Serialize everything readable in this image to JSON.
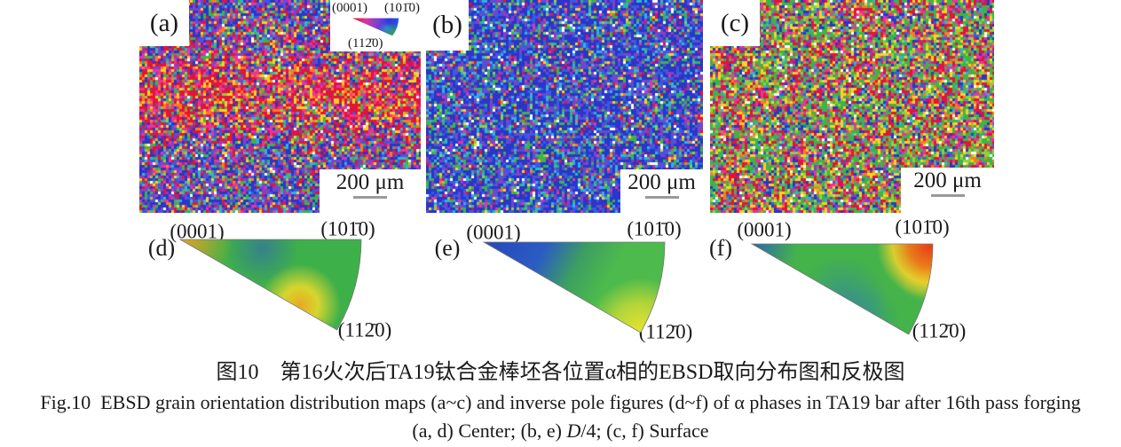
{
  "figure": {
    "maps": [
      {
        "id": "a",
        "label": "(a)",
        "scale_text": "200 μm"
      },
      {
        "id": "b",
        "label": "(b)",
        "scale_text": "200 μm"
      },
      {
        "id": "c",
        "label": "(c)",
        "scale_text": "200 μm"
      }
    ],
    "legend": {
      "pole_basal": "(0001)",
      "pole_prism1": "(101̄0)",
      "pole_prism2": "(112̄0)"
    },
    "ipfs": [
      {
        "id": "d",
        "label": "(d)",
        "corner_top_left": "(0001)",
        "corner_top_right": "(101̄0)",
        "corner_bottom": "(112̄0)"
      },
      {
        "id": "e",
        "label": "(e)",
        "corner_top_left": "(0001)",
        "corner_top_right": "(101̄0)",
        "corner_bottom": "(112̄0)"
      },
      {
        "id": "f",
        "label": "(f)",
        "corner_top_left": "(0001)",
        "corner_top_right": "(101̄0)",
        "corner_bottom": "(112̄0)"
      }
    ],
    "captions": {
      "zh": "图10　第16火次后TA19钛合金棒坯各位置α相的EBSD取向分布图和反极图",
      "en_line1": "Fig.10  EBSD grain orientation distribution maps (a~c) and inverse pole figures (d~f) of α phases in TA19 bar after 16th pass forging",
      "en_line2_pre": "(a, d) Center; (b, e) ",
      "en_line2_italic": "D",
      "en_line2_post": "/4; (c, f) Surface"
    },
    "ebsd_palettes": {
      "a": [
        {
          "c": "#e0143c",
          "w": 0.2,
          "g": "warm"
        },
        {
          "c": "#ff7a1e",
          "w": 0.06,
          "g": "warm"
        },
        {
          "c": "#ffd21e",
          "w": 0.07,
          "g": "warm"
        },
        {
          "c": "#e8359b",
          "w": 0.1,
          "g": "warm"
        },
        {
          "c": "#2936c8",
          "w": 0.15,
          "g": "cool"
        },
        {
          "c": "#8a3fc0",
          "w": 0.1,
          "g": "cool"
        },
        {
          "c": "#3a5ae0",
          "w": 0.06,
          "g": "cool"
        },
        {
          "c": "#30b4d8",
          "w": 0.04,
          "g": "cool"
        },
        {
          "c": "#3cb44a",
          "w": 0.12,
          "g": "green"
        },
        {
          "c": "#8fd23c",
          "w": 0.04,
          "g": "green"
        },
        {
          "c": "#ffffff",
          "w": 0.02,
          "g": "neutral"
        }
      ],
      "b": [
        {
          "c": "#2936c8",
          "w": 0.26,
          "g": "cool"
        },
        {
          "c": "#3a5ae0",
          "w": 0.1,
          "g": "cool"
        },
        {
          "c": "#8a3fc0",
          "w": 0.08,
          "g": "cool"
        },
        {
          "c": "#30b4d8",
          "w": 0.06,
          "g": "cool"
        },
        {
          "c": "#3cb44a",
          "w": 0.15,
          "g": "green"
        },
        {
          "c": "#8fd23c",
          "w": 0.05,
          "g": "green"
        },
        {
          "c": "#e0143c",
          "w": 0.08,
          "g": "warm"
        },
        {
          "c": "#e8359b",
          "w": 0.07,
          "g": "warm"
        },
        {
          "c": "#ffd21e",
          "w": 0.05,
          "g": "warm"
        },
        {
          "c": "#ff7a1e",
          "w": 0.03,
          "g": "warm"
        },
        {
          "c": "#ffffff",
          "w": 0.04,
          "g": "neutral"
        }
      ],
      "c": [
        {
          "c": "#3cb44a",
          "w": 0.2,
          "g": "green"
        },
        {
          "c": "#8fd23c",
          "w": 0.09,
          "g": "green"
        },
        {
          "c": "#e0143c",
          "w": 0.16,
          "g": "warm"
        },
        {
          "c": "#ffd21e",
          "w": 0.09,
          "g": "warm"
        },
        {
          "c": "#ff7a1e",
          "w": 0.05,
          "g": "warm"
        },
        {
          "c": "#e8359b",
          "w": 0.08,
          "g": "warm"
        },
        {
          "c": "#2936c8",
          "w": 0.12,
          "g": "cool"
        },
        {
          "c": "#8a3fc0",
          "w": 0.05,
          "g": "cool"
        },
        {
          "c": "#30b4d8",
          "w": 0.05,
          "g": "cool"
        },
        {
          "c": "#3a5ae0",
          "w": 0.04,
          "g": "cool"
        },
        {
          "c": "#ffffff",
          "w": 0.03,
          "g": "neutral"
        }
      ]
    },
    "ipf_colors": {
      "d": {
        "base": "#3eb04a",
        "vertex_hot": "#f2a21e",
        "top_patch": "#2f63b4",
        "bottom_hot_core": "#f0a81e",
        "bottom_hot": "#f0dc2a"
      },
      "e": {
        "blue": "#2646be",
        "blue2": "#2b5cc2",
        "green_mid": "#3d9e62",
        "green": "#4cba4c",
        "corner_yellow": "#f2e62e"
      },
      "f": {
        "base": "#44b34a",
        "vertex_blue": "#2858c0",
        "band_teal": "#2f7fae",
        "corner_red": "#e83c18",
        "corner_orange": "#f07818",
        "corner_yellow": "#f3d22a"
      },
      "legend_key": {
        "red": "#e01818",
        "magenta": "#d33aa0",
        "violet": "#7a3fd0",
        "blue": "#2a3ae0",
        "blue2": "#2a55e0",
        "green": "#35b53a",
        "cyan": "#2fb4c8"
      }
    }
  }
}
